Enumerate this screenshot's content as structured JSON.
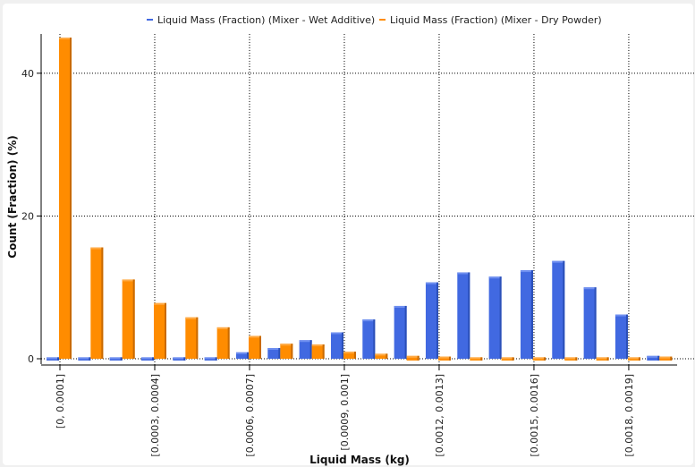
{
  "chart_data": {
    "type": "bar",
    "title": "",
    "xlabel": "Liquid Mass (kg)",
    "ylabel": "Count (Fraction) (%)",
    "ylim": [
      0,
      45.5
    ],
    "yticks": [
      0,
      20,
      40
    ],
    "grid": true,
    "legend_position": "top",
    "categories": [
      "[0, 0.0001]",
      "[0.0001, 0.0002]",
      "[0.0002, 0.0003]",
      "[0.0003, 0.0004]",
      "[0.0004, 0.0005]",
      "[0.0005, 0.0006]",
      "[0.0006, 0.0007]",
      "[0.0007, 0.0008]",
      "[0.0008, 0.0009]",
      "[0.0009, 0.001]",
      "[0.001, 0.0011]",
      "[0.0011, 0.0012]",
      "[0.0012, 0.0013]",
      "[0.0013, 0.0014]",
      "[0.0014, 0.0015]",
      "[0.0015, 0.0016]",
      "[0.0016, 0.0017]",
      "[0.0017, 0.0018]",
      "[0.0018, 0.0019]",
      "[0.0019, 0.002]"
    ],
    "shown_tick_labels": [
      "[0, 0.0001]",
      "[0.0003, 0.0004]",
      "[0.0006, 0.0007]",
      "[0.0009, 0.001]",
      "[0.0012, 0.0013]",
      "[0.0015, 0.0016]",
      "[0.0018, 0.0019]"
    ],
    "series": [
      {
        "name": "Liquid Mass (Fraction) (Mixer - Wet Additive)",
        "color": "#4169e1",
        "values": [
          0.2,
          0.2,
          0.2,
          0.2,
          0.2,
          0.2,
          0.9,
          1.5,
          2.6,
          3.7,
          5.5,
          7.4,
          10.7,
          12.1,
          11.5,
          12.4,
          13.7,
          10.0,
          6.2,
          0.4
        ]
      },
      {
        "name": "Liquid Mass (Fraction) (Mixer - Dry Powder)",
        "color": "#ff8c00",
        "values": [
          45.0,
          15.6,
          11.1,
          7.8,
          5.8,
          4.4,
          3.2,
          2.1,
          2.0,
          1.0,
          0.7,
          0.4,
          0.3,
          0.2,
          0.2,
          0.2,
          0.2,
          0.2,
          0.2,
          0.3
        ]
      }
    ]
  }
}
